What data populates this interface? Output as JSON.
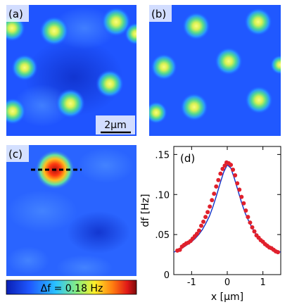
{
  "panels": {
    "a": {
      "label": "(a)"
    },
    "b": {
      "label": "(b)"
    },
    "c": {
      "label": "(c)"
    },
    "d": {
      "label": "(d)"
    }
  },
  "scalebar": {
    "label": "2µm"
  },
  "colorbar": {
    "label": "Δf = 0.18 Hz"
  },
  "colors": {
    "background_blue": "#1f54ff",
    "peak_yellow": "#f8f85a",
    "data_points": "#e0202c",
    "fit_line": "#1030c8"
  },
  "chart_data": {
    "type": "scatter",
    "title": "",
    "xlabel": "x [µm]",
    "ylabel": "df [Hz]",
    "xlim": [
      -1.5,
      1.5
    ],
    "ylim": [
      0,
      0.16
    ],
    "xticks": [
      -1,
      0,
      1
    ],
    "xtick_labels": [
      "-1",
      "0",
      "1"
    ],
    "yticks": [
      0,
      0.05,
      0.1,
      0.15
    ],
    "ytick_labels": [
      "0",
      ".05",
      ".10",
      ".15"
    ],
    "grid": false,
    "series": [
      {
        "kind": "points",
        "x": [
          -1.4,
          -1.33,
          -1.27,
          -1.21,
          -1.15,
          -1.09,
          -1.03,
          -0.97,
          -0.91,
          -0.85,
          -0.79,
          -0.73,
          -0.67,
          -0.61,
          -0.55,
          -0.49,
          -0.43,
          -0.37,
          -0.31,
          -0.25,
          -0.19,
          -0.13,
          -0.07,
          -0.02,
          0.04,
          0.1,
          0.16,
          0.22,
          0.28,
          0.34,
          0.4,
          0.46,
          0.52,
          0.58,
          0.64,
          0.7,
          0.76,
          0.82,
          0.88,
          0.94,
          1.0,
          1.06,
          1.12,
          1.18,
          1.24,
          1.3,
          1.36,
          1.42
        ],
        "y": [
          0.03,
          0.031,
          0.035,
          0.037,
          0.039,
          0.04,
          0.042,
          0.045,
          0.048,
          0.051,
          0.055,
          0.061,
          0.066,
          0.072,
          0.078,
          0.085,
          0.093,
          0.101,
          0.11,
          0.118,
          0.126,
          0.132,
          0.136,
          0.14,
          0.139,
          0.137,
          0.131,
          0.124,
          0.114,
          0.106,
          0.097,
          0.089,
          0.08,
          0.072,
          0.065,
          0.059,
          0.054,
          0.049,
          0.046,
          0.043,
          0.041,
          0.038,
          0.036,
          0.034,
          0.033,
          0.031,
          0.029,
          0.028
        ]
      },
      {
        "kind": "fit",
        "x": [
          -1.5,
          -1.4,
          -1.3,
          -1.2,
          -1.1,
          -1.0,
          -0.9,
          -0.8,
          -0.7,
          -0.6,
          -0.5,
          -0.4,
          -0.3,
          -0.2,
          -0.1,
          0.0,
          0.1,
          0.2,
          0.3,
          0.4,
          0.5,
          0.6,
          0.7,
          0.8,
          0.9,
          1.0,
          1.1,
          1.2,
          1.3,
          1.4,
          1.5
        ],
        "y": [
          0.028,
          0.03,
          0.032,
          0.035,
          0.038,
          0.041,
          0.045,
          0.05,
          0.056,
          0.064,
          0.073,
          0.085,
          0.099,
          0.114,
          0.128,
          0.137,
          0.133,
          0.12,
          0.105,
          0.09,
          0.077,
          0.067,
          0.058,
          0.051,
          0.046,
          0.042,
          0.038,
          0.035,
          0.032,
          0.03,
          0.028
        ]
      }
    ]
  }
}
